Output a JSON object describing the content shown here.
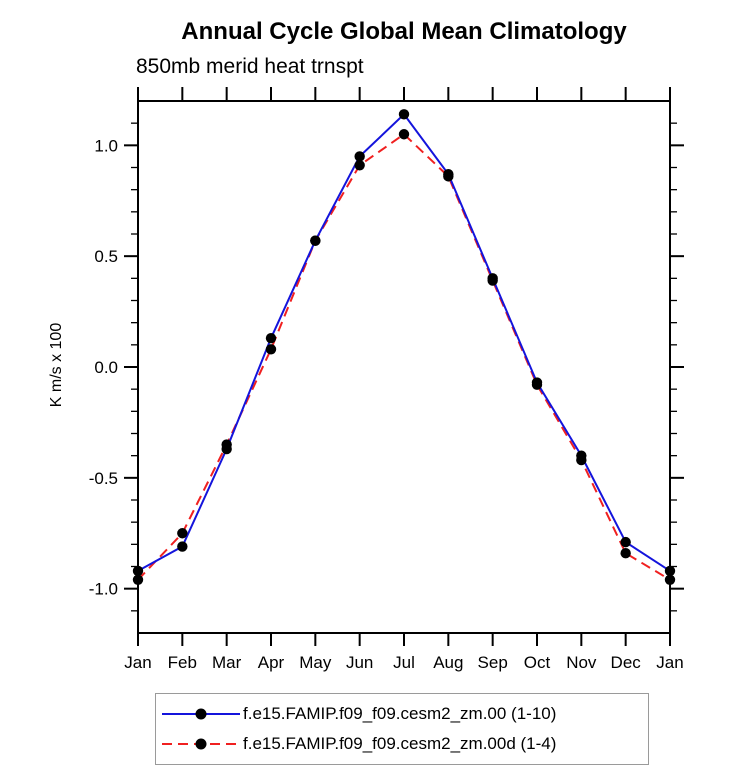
{
  "chart_data": {
    "type": "line",
    "title": "Annual Cycle Global Mean Climatology",
    "subtitle": "850mb merid heat trnspt",
    "ylabel": "K m/s x 100",
    "categories": [
      "Jan",
      "Feb",
      "Mar",
      "Apr",
      "May",
      "Jun",
      "Jul",
      "Aug",
      "Sep",
      "Oct",
      "Nov",
      "Dec",
      "Jan"
    ],
    "ylim": [
      -1.2,
      1.2
    ],
    "ytick_values": [
      -1.0,
      -0.5,
      0.0,
      0.5,
      1.0
    ],
    "ytick_labels": [
      "-1.0",
      "-0.5",
      "0.0",
      "0.5",
      "1.0"
    ],
    "minor_tick_step": 0.1,
    "minor_tick_range": [
      -1.1,
      1.1
    ],
    "grid": false,
    "legend_position": "bottom",
    "frame_color": "#000000",
    "marker_color": "#000000",
    "series": [
      {
        "name": "f.e15.FAMIP.f09_f09.cesm2_zm.00 (1-10)",
        "color": "#1414dc",
        "style": "solid",
        "values": [
          -0.92,
          -0.81,
          -0.37,
          0.13,
          0.57,
          0.95,
          1.14,
          0.87,
          0.4,
          -0.07,
          -0.4,
          -0.79,
          -0.92
        ]
      },
      {
        "name": "f.e15.FAMIP.f09_f09.cesm2_zm.00d (1-4)",
        "color": "#f02020",
        "style": "dashed",
        "values": [
          -0.96,
          -0.75,
          -0.35,
          0.08,
          0.57,
          0.91,
          1.05,
          0.86,
          0.39,
          -0.08,
          -0.42,
          -0.84,
          -0.96
        ]
      }
    ]
  }
}
